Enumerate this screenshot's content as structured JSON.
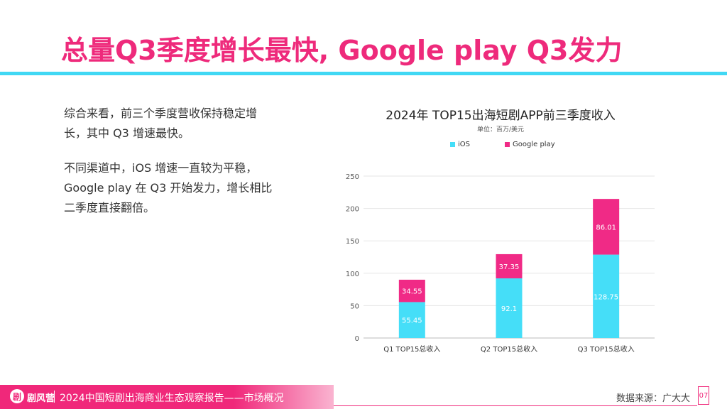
{
  "slide": {
    "title": "总量Q3季度增长最快, Google play Q3发力",
    "paragraphs": [
      "综合来看，前三个季度营收保持稳定增长，其中 Q3 增速最快。",
      "不同渠道中，iOS 增速一直较为平稳，Google play 在 Q3 开始发力，增长相比二季度直接翻倍。"
    ]
  },
  "footer": {
    "logo_char": "剧",
    "brand": "剧风营",
    "report": "2024中国短剧出海商业生态观察报告——市场概况",
    "source": "数据来源：广大大",
    "page": "07"
  },
  "colors": {
    "title": "#ee2a7b",
    "rule": "#41d8f4",
    "ios": "#45def8",
    "google_play": "#f02a86"
  },
  "chart_data": {
    "type": "bar",
    "stacked": true,
    "title": "2024年 TOP15出海短剧APP前三季度收入",
    "subtitle": "单位：百万/美元",
    "categories": [
      "Q1 TOP15总收入",
      "Q2 TOP15总收入",
      "Q3 TOP15总收入"
    ],
    "series": [
      {
        "name": "iOS",
        "values": [
          55.45,
          92.1,
          128.75
        ],
        "color": "#45def8",
        "labels": [
          "55.45",
          "92.1",
          "128.75"
        ]
      },
      {
        "name": "Google play",
        "values": [
          34.55,
          37.35,
          86.01
        ],
        "color": "#f02a86",
        "labels": [
          "34.55",
          "37.35",
          "86.01"
        ]
      }
    ],
    "ylim": [
      0,
      250
    ],
    "yticks": [
      0,
      50,
      100,
      150,
      200,
      250
    ],
    "grid": true,
    "legend": "top"
  }
}
